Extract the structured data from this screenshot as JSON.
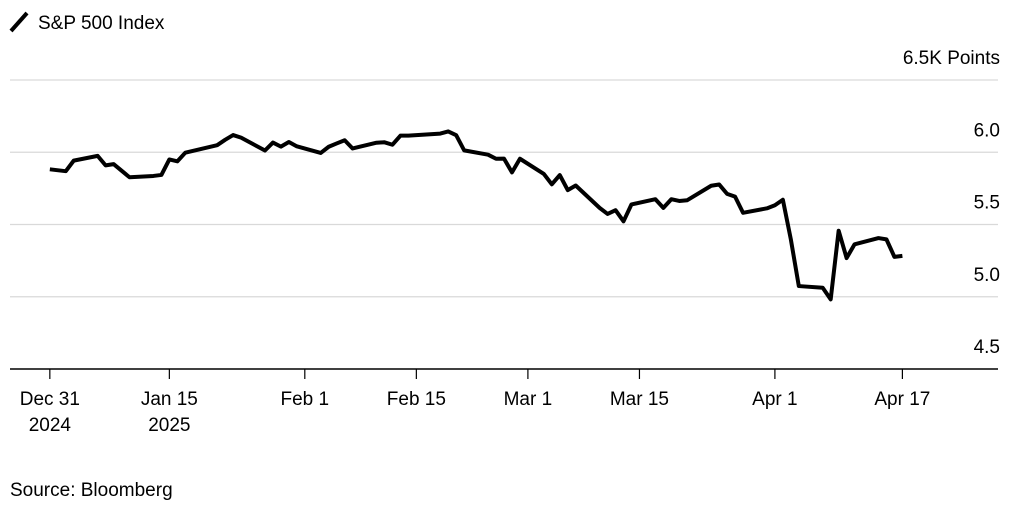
{
  "chart_data": {
    "type": "line",
    "source": "Source: Bloomberg",
    "xlim": [
      "2024-12-26",
      "2025-04-29"
    ],
    "xticks": [
      {
        "value": "2024-12-31",
        "label": "Dec 31\n2024"
      },
      {
        "value": "2025-01-15",
        "label": "Jan 15\n2025"
      },
      {
        "value": "2025-02-01",
        "label": "Feb 1"
      },
      {
        "value": "2025-02-15",
        "label": "Feb 15"
      },
      {
        "value": "2025-03-01",
        "label": "Mar 1"
      },
      {
        "value": "2025-03-15",
        "label": "Mar 15"
      },
      {
        "value": "2025-04-01",
        "label": "Apr 1"
      },
      {
        "value": "2025-04-17",
        "label": "Apr 17"
      }
    ],
    "ylim": [
      4.5,
      6.5
    ],
    "yticks": [
      4.5,
      {
        "value": 5,
        "label": "5.0"
      },
      5.5,
      {
        "value": 6,
        "label": "6.0"
      },
      {
        "value": 6.5,
        "label": "6.5K Points"
      }
    ],
    "grid": true,
    "x": [
      "2024-12-31",
      "2025-01-02",
      "2025-01-03",
      "2025-01-06",
      "2025-01-07",
      "2025-01-08",
      "2025-01-10",
      "2025-01-13",
      "2025-01-14",
      "2025-01-15",
      "2025-01-16",
      "2025-01-17",
      "2025-01-21",
      "2025-01-22",
      "2025-01-23",
      "2025-01-24",
      "2025-01-27",
      "2025-01-28",
      "2025-01-29",
      "2025-01-30",
      "2025-01-31",
      "2025-02-03",
      "2025-02-04",
      "2025-02-05",
      "2025-02-06",
      "2025-02-07",
      "2025-02-10",
      "2025-02-11",
      "2025-02-12",
      "2025-02-13",
      "2025-02-14",
      "2025-02-18",
      "2025-02-19",
      "2025-02-20",
      "2025-02-21",
      "2025-02-24",
      "2025-02-25",
      "2025-02-26",
      "2025-02-27",
      "2025-02-28",
      "2025-03-03",
      "2025-03-04",
      "2025-03-05",
      "2025-03-06",
      "2025-03-07",
      "2025-03-10",
      "2025-03-11",
      "2025-03-12",
      "2025-03-13",
      "2025-03-14",
      "2025-03-17",
      "2025-03-18",
      "2025-03-19",
      "2025-03-20",
      "2025-03-21",
      "2025-03-24",
      "2025-03-25",
      "2025-03-26",
      "2025-03-27",
      "2025-03-28",
      "2025-03-31",
      "2025-04-01",
      "2025-04-02",
      "2025-04-03",
      "2025-04-04",
      "2025-04-07",
      "2025-04-08",
      "2025-04-09",
      "2025-04-10",
      "2025-04-11",
      "2025-04-14",
      "2025-04-15",
      "2025-04-16",
      "2025-04-17"
    ],
    "series": [
      {
        "name": "S&P 500 Index",
        "color": "#000000",
        "values": [
          5.882,
          5.869,
          5.942,
          5.975,
          5.909,
          5.918,
          5.827,
          5.836,
          5.843,
          5.95,
          5.937,
          5.997,
          6.049,
          6.086,
          6.119,
          6.101,
          6.012,
          6.067,
          6.039,
          6.071,
          6.041,
          5.995,
          6.038,
          6.061,
          6.083,
          6.026,
          6.066,
          6.069,
          6.052,
          6.115,
          6.115,
          6.129,
          6.144,
          6.118,
          6.013,
          5.983,
          5.955,
          5.956,
          5.861,
          5.955,
          5.85,
          5.778,
          5.842,
          5.738,
          5.77,
          5.615,
          5.573,
          5.599,
          5.522,
          5.639,
          5.675,
          5.615,
          5.675,
          5.663,
          5.668,
          5.768,
          5.777,
          5.712,
          5.693,
          5.581,
          5.612,
          5.633,
          5.671,
          5.397,
          5.074,
          5.062,
          4.982,
          5.457,
          5.268,
          5.363,
          5.406,
          5.397,
          5.276,
          5.283
        ]
      }
    ]
  }
}
